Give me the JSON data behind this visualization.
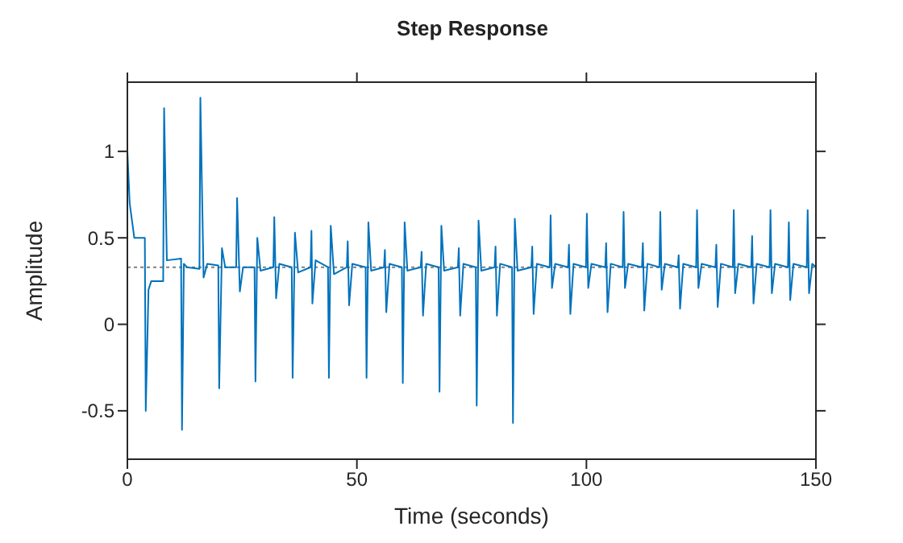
{
  "chart_data": {
    "type": "line",
    "title": "Step Response",
    "xlabel": "Time (seconds)",
    "ylabel": "Amplitude",
    "x": [
      0,
      0.5,
      1.5,
      3.8,
      4.0,
      4.6,
      5.2,
      7.8,
      8.0,
      8.6,
      11.7,
      11.9,
      12.3,
      13,
      15.7,
      15.9,
      16.6,
      17.4,
      19.8,
      20.0,
      20.6,
      21.3,
      23.7,
      23.9,
      24.5,
      25.2,
      27.7,
      27.9,
      28.3,
      29,
      31.8,
      32.0,
      32.4,
      33.1,
      35.8,
      36.0,
      36.5,
      37.2,
      39.9,
      40.1,
      40.3,
      41,
      43.7,
      43.9,
      44.3,
      45,
      47.8,
      48.0,
      48.3,
      49,
      51.9,
      52.1,
      52.5,
      53.1,
      55.9,
      56.1,
      56.4,
      57.1,
      59.8,
      60.0,
      60.4,
      61.0,
      63.9,
      64.1,
      64.4,
      65.1,
      67.8,
      68.0,
      68.4,
      69.0,
      72.0,
      72.2,
      72.5,
      73.2,
      75.9,
      76.1,
      76.5,
      77.1,
      80.0,
      80.2,
      80.5,
      81.2,
      83.8,
      84.0,
      84.4,
      85.0,
      88.0,
      88.2,
      88.5,
      89.2,
      92.0,
      92.2,
      92.5,
      93.2,
      96.0,
      96.2,
      96.5,
      97.2,
      99.9,
      100.1,
      100.4,
      101.1,
      104.1,
      104.3,
      104.6,
      105.3,
      107.9,
      108.1,
      108.4,
      109.1,
      112.1,
      112.3,
      112.6,
      113.3,
      115.9,
      116.1,
      116.4,
      117.1,
      119.9,
      120.1,
      120.4,
      121.1,
      123.9,
      124.1,
      124.4,
      125.1,
      128.1,
      128.3,
      128.6,
      129.3,
      131.9,
      132.1,
      132.4,
      133.1,
      135.9,
      136.1,
      136.4,
      137.1,
      139.9,
      140.1,
      140.4,
      141.1,
      143.9,
      144.1,
      144.4,
      145.1,
      148.0,
      148.2,
      148.5,
      149.2,
      150
    ],
    "series": [
      {
        "color": "#0072bd",
        "values": [
          1,
          0.7,
          0.5,
          0.5,
          -0.5,
          0.2,
          0.25,
          0.25,
          1.25,
          0.37,
          0.38,
          -0.61,
          0.35,
          0.33,
          0.32,
          1.31,
          0.27,
          0.35,
          0.34,
          -0.37,
          0.44,
          0.33,
          0.33,
          0.73,
          0.19,
          0.33,
          0.33,
          -0.33,
          0.5,
          0.31,
          0.33,
          0.62,
          0.15,
          0.35,
          0.33,
          -0.31,
          0.53,
          0.3,
          0.33,
          0.54,
          0.12,
          0.37,
          0.33,
          -0.31,
          0.57,
          0.29,
          0.33,
          0.48,
          0.11,
          0.35,
          0.33,
          -0.31,
          0.59,
          0.31,
          0.33,
          0.43,
          0.07,
          0.35,
          0.33,
          -0.34,
          0.59,
          0.31,
          0.33,
          0.42,
          0.05,
          0.35,
          0.33,
          -0.39,
          0.57,
          0.31,
          0.33,
          0.44,
          0.05,
          0.35,
          0.33,
          -0.47,
          0.6,
          0.31,
          0.33,
          0.45,
          0.05,
          0.35,
          0.33,
          -0.57,
          0.61,
          0.31,
          0.33,
          0.45,
          0.06,
          0.35,
          0.33,
          0.63,
          0.21,
          0.35,
          0.33,
          0.46,
          0.06,
          0.35,
          0.33,
          0.64,
          0.21,
          0.35,
          0.33,
          0.47,
          0.07,
          0.35,
          0.33,
          0.65,
          0.21,
          0.35,
          0.33,
          0.47,
          0.08,
          0.35,
          0.33,
          0.65,
          0.2,
          0.35,
          0.33,
          0.4,
          0.09,
          0.35,
          0.33,
          0.66,
          0.21,
          0.35,
          0.33,
          0.46,
          0.1,
          0.35,
          0.33,
          0.66,
          0.18,
          0.35,
          0.33,
          0.51,
          0.12,
          0.35,
          0.33,
          0.66,
          0.18,
          0.35,
          0.33,
          0.59,
          0.14,
          0.35,
          0.33,
          0.66,
          0.18,
          0.35,
          0.33
        ]
      }
    ],
    "ref_lines": [
      {
        "axis": "y",
        "value": 0.33,
        "color": "#808080",
        "line_style": "dotted"
      }
    ],
    "xlim": [
      0,
      150
    ],
    "xticks": [
      0,
      50,
      100,
      150
    ],
    "ylim": [
      -0.78,
      1.4
    ],
    "yticks": [
      -0.5,
      0,
      0.5,
      1
    ],
    "grid": false,
    "legend": false,
    "marker": "none",
    "line_style": "solid"
  }
}
